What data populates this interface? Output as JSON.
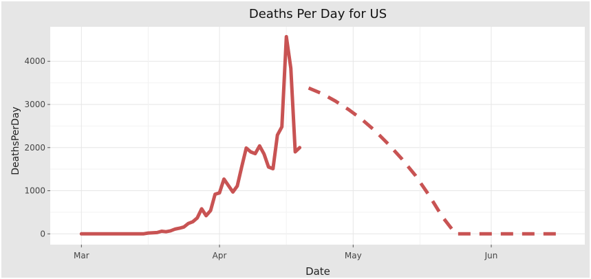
{
  "chart_data": {
    "type": "line",
    "title": "Deaths Per Day for US",
    "xlabel": "Date",
    "ylabel": "DeathsPerDay",
    "x_ticks": [
      "Mar",
      "Apr",
      "May",
      "Jun"
    ],
    "y_ticks": [
      "0",
      "1000",
      "2000",
      "3000",
      "4000"
    ],
    "ylim": [
      -250,
      4800
    ],
    "xlim": [
      "2020-02-23",
      "2020-06-22"
    ],
    "grid": true,
    "colors": {
      "line": "#c85353",
      "panel_bg": "#e6e6e6",
      "grid": "#e6e6e6"
    },
    "series": [
      {
        "style": "solid",
        "points": [
          [
            "2020-03-01",
            0
          ],
          [
            "2020-03-05",
            0
          ],
          [
            "2020-03-10",
            0
          ],
          [
            "2020-03-15",
            2
          ],
          [
            "2020-03-16",
            20
          ],
          [
            "2020-03-17",
            25
          ],
          [
            "2020-03-18",
            30
          ],
          [
            "2020-03-19",
            60
          ],
          [
            "2020-03-20",
            50
          ],
          [
            "2020-03-21",
            70
          ],
          [
            "2020-03-22",
            110
          ],
          [
            "2020-03-23",
            130
          ],
          [
            "2020-03-24",
            160
          ],
          [
            "2020-03-25",
            240
          ],
          [
            "2020-03-26",
            280
          ],
          [
            "2020-03-27",
            370
          ],
          [
            "2020-03-28",
            580
          ],
          [
            "2020-03-29",
            420
          ],
          [
            "2020-03-30",
            540
          ],
          [
            "2020-03-31",
            920
          ],
          [
            "2020-04-01",
            950
          ],
          [
            "2020-04-02",
            1270
          ],
          [
            "2020-04-03",
            1120
          ],
          [
            "2020-04-04",
            970
          ],
          [
            "2020-04-05",
            1110
          ],
          [
            "2020-04-06",
            1560
          ],
          [
            "2020-04-07",
            1990
          ],
          [
            "2020-04-08",
            1900
          ],
          [
            "2020-04-09",
            1860
          ],
          [
            "2020-04-10",
            2040
          ],
          [
            "2020-04-11",
            1850
          ],
          [
            "2020-04-12",
            1550
          ],
          [
            "2020-04-13",
            1510
          ],
          [
            "2020-04-14",
            2290
          ],
          [
            "2020-04-15",
            2480
          ],
          [
            "2020-04-16",
            4570
          ],
          [
            "2020-04-17",
            3840
          ],
          [
            "2020-04-18",
            1900
          ],
          [
            "2020-04-19",
            2000
          ]
        ]
      },
      {
        "style": "dashed",
        "points": [
          [
            "2020-04-21",
            3380
          ],
          [
            "2020-04-24",
            3250
          ],
          [
            "2020-04-27",
            3080
          ],
          [
            "2020-04-30",
            2880
          ],
          [
            "2020-05-03",
            2650
          ],
          [
            "2020-05-06",
            2380
          ],
          [
            "2020-05-09",
            2070
          ],
          [
            "2020-05-12",
            1730
          ],
          [
            "2020-05-15",
            1350
          ],
          [
            "2020-05-18",
            900
          ],
          [
            "2020-05-21",
            400
          ],
          [
            "2020-05-24",
            0
          ],
          [
            "2020-06-01",
            0
          ],
          [
            "2020-06-10",
            0
          ],
          [
            "2020-06-17",
            0
          ]
        ]
      }
    ]
  }
}
